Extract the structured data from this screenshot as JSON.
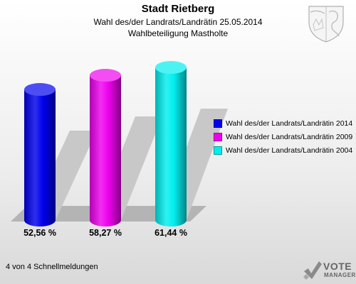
{
  "chart_data": {
    "type": "bar",
    "title": "Stadt Rietberg",
    "subtitle": "Wahl des/der Landrats/Landrätin 25.05.2014",
    "subtitle2": "Wahlbeteiligung Mastholte",
    "categories": [
      "Wahl des/der Landrats/Landrätin 2014",
      "Wahl des/der Landrats/Landrätin 2009",
      "Wahl des/der Landrats/Landrätin 2004"
    ],
    "values": [
      52.56,
      58.27,
      61.44
    ],
    "value_labels": [
      "52,56 %",
      "58,27 %",
      "61,44 %"
    ],
    "colors": [
      "#0000ee",
      "#ee00ee",
      "#00eeee"
    ],
    "ylim": [
      0,
      70
    ],
    "legend_position": "right",
    "grid": false
  },
  "footer": {
    "text": "4 von 4 Schnellmeldungen"
  },
  "logo": {
    "line1": "VOTE",
    "line2": "MANAGER"
  }
}
